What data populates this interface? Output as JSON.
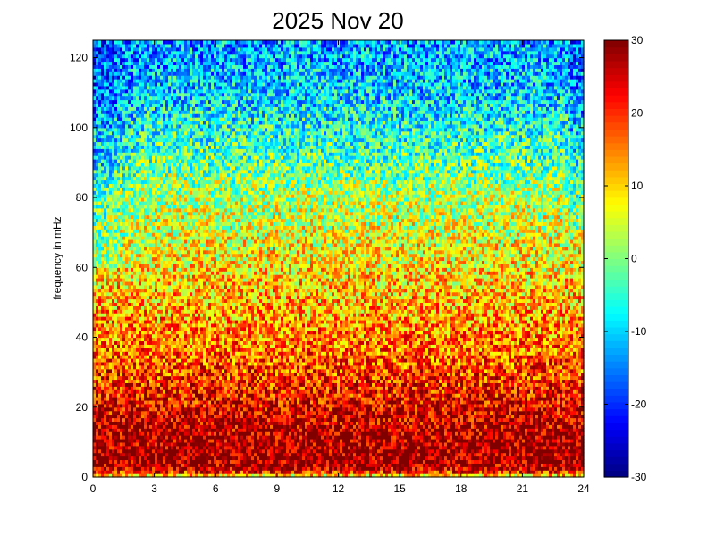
{
  "chart_data": {
    "type": "heatmap",
    "title": "2025 Nov 20",
    "xlabel": "",
    "ylabel": "frequency in mHz",
    "xlim": [
      0,
      24
    ],
    "ylim": [
      0,
      125
    ],
    "xticks": [
      "0",
      "3",
      "6",
      "9",
      "12",
      "15",
      "18",
      "21",
      "24"
    ],
    "yticks": [
      "0",
      "20",
      "40",
      "60",
      "80",
      "100",
      "120"
    ],
    "colorbar": {
      "range": [
        -30,
        30
      ],
      "ticks": [
        "-30",
        "-20",
        "-10",
        "0",
        "10",
        "20",
        "30"
      ],
      "colormap": "jet"
    },
    "profile": {
      "description_of_intensity_vs_frequency": "values high (~25-30) near 5-15 mHz, decreasing to ~-15 at 120 mHz; thin band near 1-2 mHz lower",
      "freq_mHz": [
        0,
        2,
        5,
        10,
        20,
        30,
        40,
        50,
        60,
        70,
        80,
        90,
        100,
        110,
        125
      ],
      "level": [
        5,
        26,
        29,
        28,
        24,
        19,
        15,
        12,
        9,
        6,
        3,
        -2,
        -6,
        -10,
        -13
      ]
    }
  }
}
